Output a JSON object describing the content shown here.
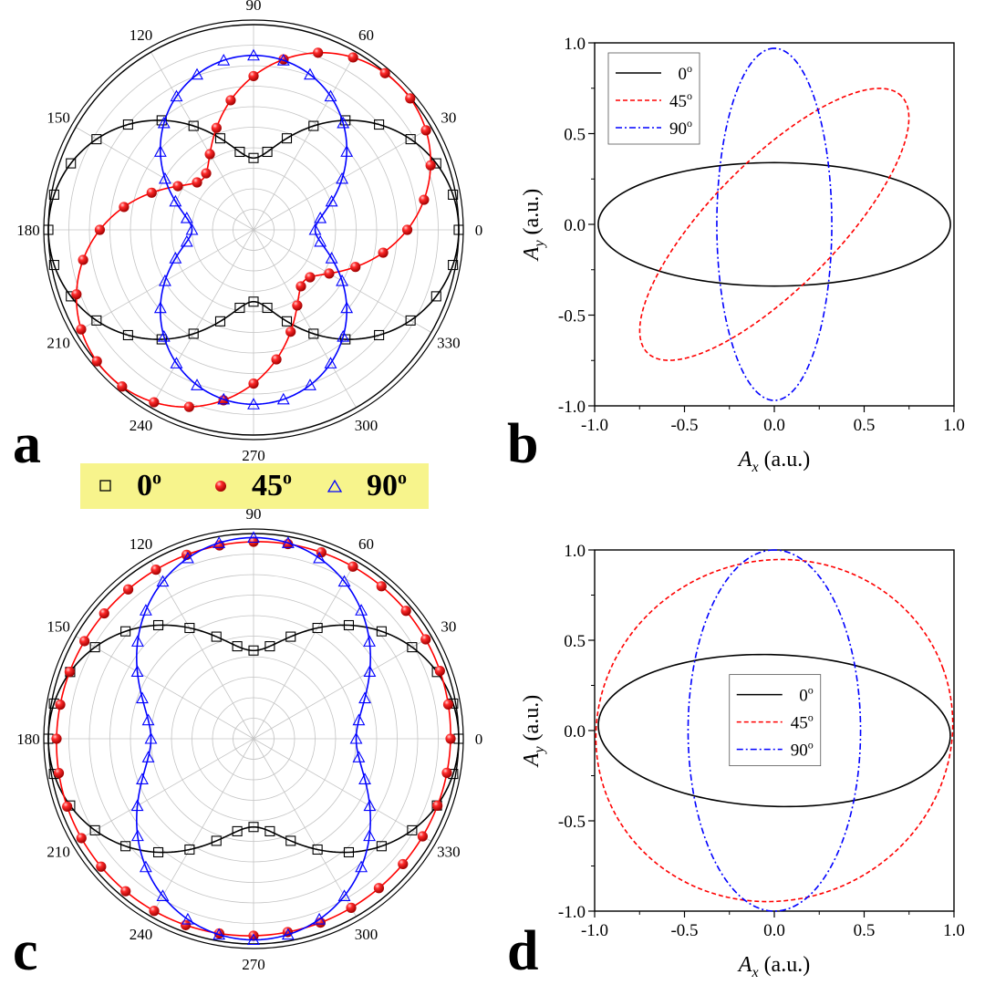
{
  "panel_labels": {
    "a": "a",
    "b": "b",
    "c": "c",
    "d": "d"
  },
  "shared_legend": {
    "items": [
      {
        "label": "0",
        "sup": "o",
        "marker": "open-square",
        "color": "#000000"
      },
      {
        "label": "45",
        "sup": "o",
        "marker": "filled-sphere",
        "color": "#ff0000"
      },
      {
        "label": "90",
        "sup": "o",
        "marker": "open-triangle",
        "color": "#0000ff"
      }
    ],
    "background": "#f7f48c"
  },
  "colors": {
    "series_0": "#000000",
    "series_45": "#ff0000",
    "series_90": "#0000ff",
    "grid": "#bbbbbb"
  },
  "chart_data": [
    {
      "panel": "a",
      "type": "polar",
      "angle_unit": "degrees",
      "angular_ticks": [
        "0",
        "30",
        "60",
        "90",
        "120",
        "150",
        "180",
        "210",
        "240",
        "270",
        "300",
        "330"
      ],
      "radial_range": [
        0,
        1
      ],
      "series": [
        {
          "name": "0",
          "color": "#000000",
          "marker": "open-square",
          "model": {
            "kind": "projection",
            "a": 1.0,
            "b": 0.35,
            "phi": 0
          },
          "marker_angles": [
            0,
            10,
            20,
            30,
            40,
            50,
            60,
            70,
            80,
            90,
            100,
            110,
            120,
            130,
            140,
            150,
            160,
            170,
            180,
            190,
            200,
            210,
            220,
            230,
            240,
            250,
            260,
            270,
            280,
            290,
            300,
            310,
            320,
            330,
            340,
            350
          ]
        },
        {
          "name": "45",
          "color": "#ff0000",
          "marker": "filled-sphere",
          "model": {
            "kind": "projection",
            "a": 1.0,
            "b": 0.35,
            "phi": 45
          },
          "marker_angles": [
            0,
            10,
            20,
            30,
            40,
            50,
            60,
            70,
            80,
            90,
            100,
            110,
            120,
            130,
            140,
            150,
            160,
            170,
            180,
            190,
            200,
            210,
            220,
            230,
            240,
            250,
            260,
            270,
            280,
            290,
            300,
            310,
            320,
            330,
            340,
            350
          ]
        },
        {
          "name": "90",
          "color": "#0000ff",
          "marker": "open-triangle",
          "model": {
            "kind": "projection",
            "a": 0.85,
            "b": 0.3,
            "phi": 90
          },
          "marker_angles": [
            0,
            10,
            20,
            30,
            40,
            50,
            60,
            70,
            80,
            90,
            100,
            110,
            120,
            130,
            140,
            150,
            160,
            170,
            180,
            190,
            200,
            210,
            220,
            230,
            240,
            250,
            260,
            270,
            280,
            290,
            300,
            310,
            320,
            330,
            340,
            350
          ]
        }
      ]
    },
    {
      "panel": "b",
      "type": "line",
      "xlabel_main": "A",
      "xlabel_sub": "x",
      "xlabel_unit": " (a.u.)",
      "ylabel_main": "A",
      "ylabel_sub": "y",
      "ylabel_unit": " (a.u.)",
      "xlim": [
        -1.0,
        1.0
      ],
      "ylim": [
        -1.0,
        1.0
      ],
      "xticks": [
        "-1.0",
        "-0.5",
        "0.0",
        "0.5",
        "1.0"
      ],
      "yticks": [
        "-1.0",
        "-0.5",
        "0.0",
        "0.5",
        "1.0"
      ],
      "legend": {
        "position": "top-left",
        "items": [
          {
            "label": "0",
            "sup": "o",
            "style": "solid",
            "color": "#000000"
          },
          {
            "label": "45",
            "sup": "o",
            "style": "dash",
            "color": "#ff0000"
          },
          {
            "label": "90",
            "sup": "o",
            "style": "dashdot",
            "color": "#0000ff"
          }
        ]
      },
      "series": [
        {
          "name": "0",
          "style": "solid",
          "color": "#000000",
          "ellipse": {
            "a": 0.98,
            "b": 0.34,
            "rotation_deg": 0
          }
        },
        {
          "name": "45",
          "style": "dash",
          "color": "#ff0000",
          "ellipse": {
            "a": 1.0,
            "b": 0.35,
            "rotation_deg": 45
          }
        },
        {
          "name": "90",
          "style": "dashdot",
          "color": "#0000ff",
          "ellipse": {
            "a": 0.97,
            "b": 0.32,
            "rotation_deg": 90
          }
        }
      ]
    },
    {
      "panel": "c",
      "type": "polar",
      "angle_unit": "degrees",
      "angular_ticks": [
        "0",
        "30",
        "60",
        "90",
        "120",
        "150",
        "180",
        "210",
        "240",
        "270",
        "300",
        "330"
      ],
      "radial_range": [
        0,
        1
      ],
      "series": [
        {
          "name": "0",
          "color": "#000000",
          "marker": "open-square",
          "model": {
            "kind": "projection",
            "a": 1.0,
            "b": 0.43,
            "phi": 0
          },
          "marker_angles": [
            0,
            10,
            20,
            30,
            40,
            50,
            60,
            70,
            80,
            90,
            100,
            110,
            120,
            130,
            140,
            150,
            160,
            170,
            180,
            190,
            200,
            210,
            220,
            230,
            240,
            250,
            260,
            270,
            280,
            290,
            300,
            310,
            320,
            330,
            340,
            350
          ]
        },
        {
          "name": "45",
          "color": "#ff0000",
          "marker": "filled-sphere",
          "model": {
            "kind": "projection",
            "a": 0.97,
            "b": 0.95,
            "phi": 45
          },
          "marker_angles": [
            0,
            10,
            20,
            30,
            40,
            50,
            60,
            70,
            80,
            90,
            100,
            110,
            120,
            130,
            140,
            150,
            160,
            170,
            180,
            190,
            200,
            210,
            220,
            230,
            240,
            250,
            260,
            270,
            280,
            290,
            300,
            310,
            320,
            330,
            340,
            350
          ]
        },
        {
          "name": "90",
          "color": "#0000ff",
          "marker": "open-triangle",
          "model": {
            "kind": "projection",
            "a": 0.98,
            "b": 0.5,
            "phi": 90
          },
          "marker_angles": [
            0,
            10,
            20,
            30,
            40,
            50,
            60,
            70,
            80,
            90,
            100,
            110,
            120,
            130,
            140,
            150,
            160,
            170,
            180,
            190,
            200,
            210,
            220,
            230,
            240,
            250,
            260,
            270,
            280,
            290,
            300,
            310,
            320,
            330,
            340,
            350
          ]
        }
      ]
    },
    {
      "panel": "d",
      "type": "line",
      "xlabel_main": "A",
      "xlabel_sub": "x",
      "xlabel_unit": " (a.u.)",
      "ylabel_main": "A",
      "ylabel_sub": "y",
      "ylabel_unit": " (a.u.)",
      "xlim": [
        -1.0,
        1.0
      ],
      "ylim": [
        -1.0,
        1.0
      ],
      "xticks": [
        "-1.0",
        "-0.5",
        "0.0",
        "0.5",
        "1.0"
      ],
      "yticks": [
        "-1.0",
        "-0.5",
        "0.0",
        "0.5",
        "1.0"
      ],
      "legend": {
        "position": "center",
        "items": [
          {
            "label": "0",
            "sup": "o",
            "style": "solid",
            "color": "#000000"
          },
          {
            "label": "45",
            "sup": "o",
            "style": "dash",
            "color": "#ff0000"
          },
          {
            "label": "90",
            "sup": "o",
            "style": "dashdot",
            "color": "#0000ff"
          }
        ]
      },
      "series": [
        {
          "name": "0",
          "style": "solid",
          "color": "#000000",
          "ellipse": {
            "a": 0.98,
            "b": 0.42,
            "rotation_deg": -2
          }
        },
        {
          "name": "45",
          "style": "dash",
          "color": "#ff0000",
          "ellipse": {
            "a": 1.0,
            "b": 0.94,
            "rotation_deg": 20
          }
        },
        {
          "name": "90",
          "style": "dashdot",
          "color": "#0000ff",
          "ellipse": {
            "a": 1.0,
            "b": 0.48,
            "rotation_deg": 90
          }
        }
      ]
    }
  ]
}
